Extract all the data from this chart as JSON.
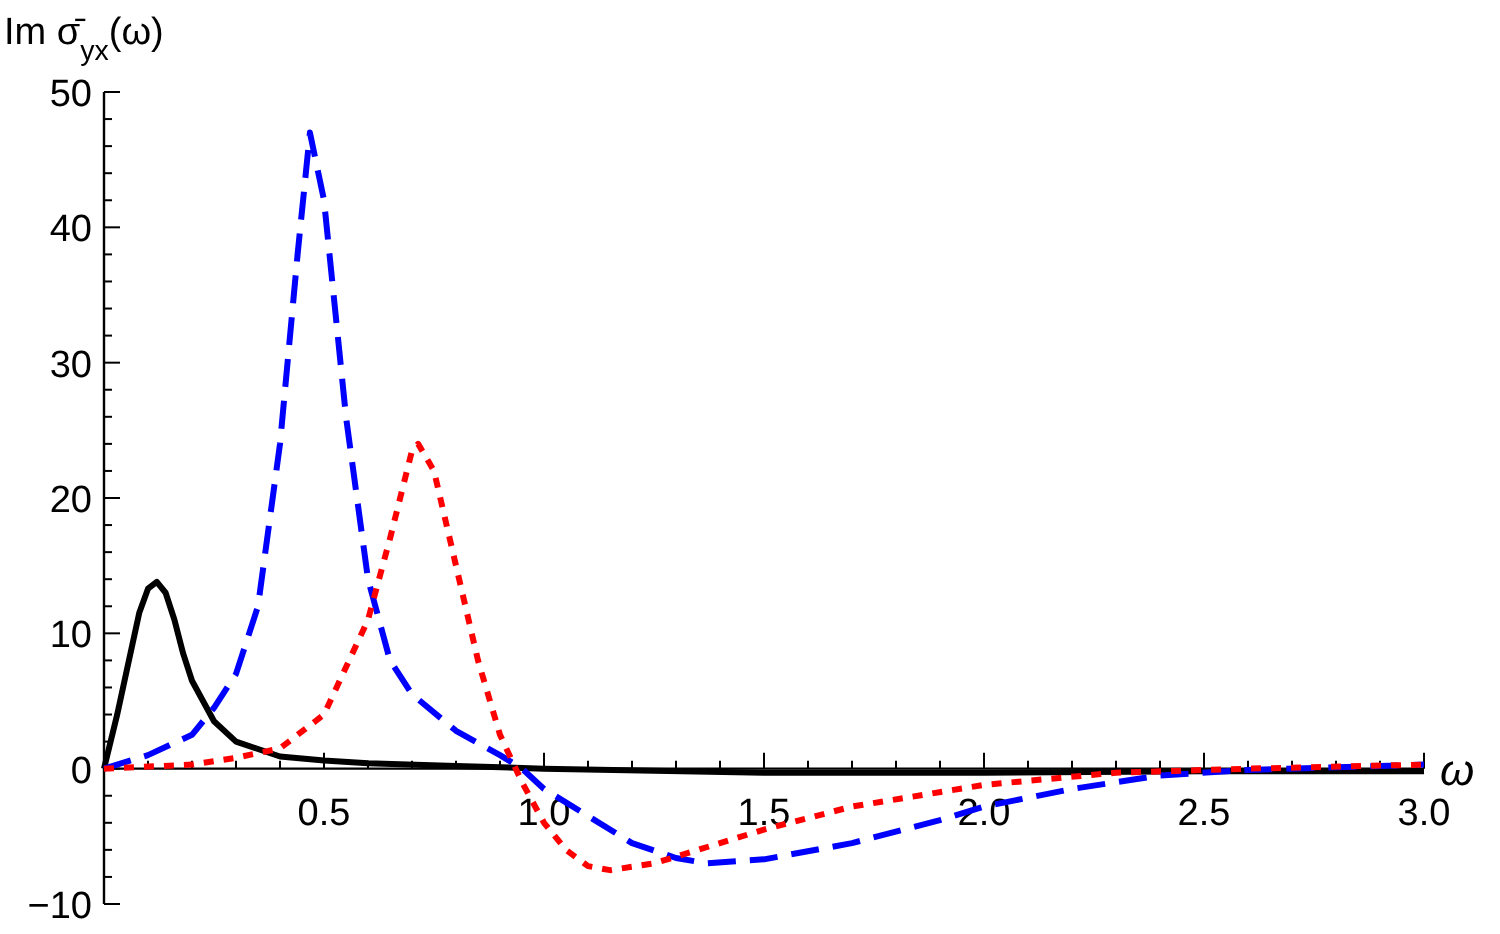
{
  "chart_data": {
    "type": "line",
    "ylabel": "Im σ̄$_{yx}$(ω)",
    "xlabel": "ω",
    "xlim": [
      0,
      3.0
    ],
    "ylim": [
      -10,
      50
    ],
    "xticks": [
      {
        "value": 0.5,
        "label": "0.5"
      },
      {
        "value": 1.0,
        "label": "1.0"
      },
      {
        "value": 1.5,
        "label": "1.5"
      },
      {
        "value": 2.0,
        "label": "2.0"
      },
      {
        "value": 2.5,
        "label": "2.5"
      },
      {
        "value": 3.0,
        "label": "3.0"
      }
    ],
    "yticks": [
      -10,
      0,
      10,
      20,
      30,
      40,
      50
    ],
    "grid": false,
    "marker": "none",
    "series": [
      {
        "color": "#000000",
        "line_style": "solid",
        "x": [
          0,
          0.03,
          0.05,
          0.08,
          0.1,
          0.12,
          0.14,
          0.16,
          0.18,
          0.2,
          0.25,
          0.3,
          0.4,
          0.5,
          0.6,
          0.8,
          1.0,
          1.5,
          2.0,
          2.5,
          3.0
        ],
        "values": [
          0,
          4,
          7,
          11.5,
          13.3,
          13.8,
          13,
          11,
          8.5,
          6.5,
          3.5,
          2,
          0.9,
          0.6,
          0.4,
          0.2,
          0,
          -0.3,
          -0.3,
          -0.2,
          -0.2
        ]
      },
      {
        "color": "#0000ff",
        "line_style": "dashed",
        "x": [
          0,
          0.1,
          0.2,
          0.25,
          0.3,
          0.35,
          0.4,
          0.44,
          0.468,
          0.5,
          0.55,
          0.6,
          0.65,
          0.7,
          0.8,
          0.9,
          0.95,
          1.0,
          1.1,
          1.2,
          1.3,
          1.37,
          1.5,
          1.7,
          1.9,
          2.0,
          2.2,
          2.4,
          2.6,
          2.8,
          3.0
        ],
        "values": [
          0,
          1,
          2.5,
          4.5,
          7,
          12,
          24,
          38,
          47,
          42,
          26,
          14,
          8,
          5.5,
          2.8,
          1,
          0,
          -1.5,
          -3.5,
          -5.5,
          -6.6,
          -7,
          -6.7,
          -5.5,
          -3.8,
          -2.8,
          -1.5,
          -0.5,
          -0.1,
          0.1,
          0.3
        ]
      },
      {
        "color": "#ff0000",
        "line_style": "dotted",
        "x": [
          0,
          0.2,
          0.3,
          0.4,
          0.5,
          0.6,
          0.65,
          0.7,
          0.714,
          0.75,
          0.8,
          0.85,
          0.9,
          0.95,
          1.0,
          1.05,
          1.1,
          1.15,
          1.25,
          1.4,
          1.5,
          1.7,
          2.0,
          2.3,
          2.6,
          3.0
        ],
        "values": [
          0,
          0.3,
          0.8,
          1.5,
          4,
          11,
          17,
          23.5,
          24,
          22,
          15,
          8,
          2.5,
          -1,
          -4,
          -6,
          -7.2,
          -7.5,
          -7,
          -5.5,
          -4.5,
          -2.8,
          -1.2,
          -0.3,
          0,
          0.3
        ]
      }
    ]
  }
}
